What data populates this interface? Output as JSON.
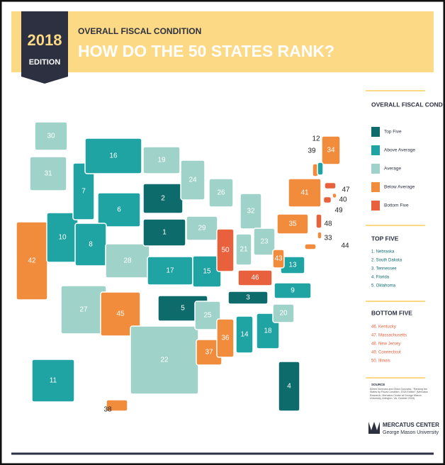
{
  "edition": {
    "year": "2018",
    "label": "EDITION"
  },
  "header": {
    "kicker": "OVERALL FISCAL CONDITION",
    "title": "HOW DO THE 50 STATES RANK?"
  },
  "legend": {
    "title": "OVERALL FISCAL CONDITION RANK",
    "items": [
      {
        "label": "Top Five",
        "color": "#0e6b6c"
      },
      {
        "label": "Above Average",
        "color": "#1fa4a3"
      },
      {
        "label": "Average",
        "color": "#9fd3c9"
      },
      {
        "label": "Below Average",
        "color": "#f08c3c"
      },
      {
        "label": "Bottom Five",
        "color": "#e8603c"
      }
    ]
  },
  "top_five": {
    "title": "TOP FIVE",
    "items": [
      "1. Nebraska",
      "2. South Dakota",
      "3. Tennessee",
      "4. Florida",
      "5. Oklahoma"
    ]
  },
  "bottom_five": {
    "title": "BOTTOM FIVE",
    "items": [
      "46. Kentucky",
      "47. Massachusetts",
      "48. New Jersey",
      "49. Connecticut",
      "50. Illinois"
    ]
  },
  "source": {
    "label": "SOURCE",
    "text": "Eileen Norcross and Olivia Gonzalez, \"Ranking the States by Fiscal Condition, 2018 Edition\" (Mercatus Research, Mercatus Center at George Mason University, Arlington, VA, October 2018)."
  },
  "logo": {
    "name": "MERCATUS CENTER",
    "org": "George Mason University"
  },
  "states": [
    {
      "rank": 30,
      "category": 2
    },
    {
      "rank": 31,
      "category": 2
    },
    {
      "rank": 42,
      "category": 3
    },
    {
      "rank": 10,
      "category": 1
    },
    {
      "rank": 7,
      "category": 1
    },
    {
      "rank": 16,
      "category": 1
    },
    {
      "rank": 6,
      "category": 1
    },
    {
      "rank": 8,
      "category": 1
    },
    {
      "rank": 27,
      "category": 2
    },
    {
      "rank": 28,
      "category": 2
    },
    {
      "rank": 45,
      "category": 3
    },
    {
      "rank": 19,
      "category": 2
    },
    {
      "rank": 2,
      "category": 0
    },
    {
      "rank": 1,
      "category": 0
    },
    {
      "rank": 17,
      "category": 1
    },
    {
      "rank": 5,
      "category": 0
    },
    {
      "rank": 22,
      "category": 2
    },
    {
      "rank": 24,
      "category": 2
    },
    {
      "rank": 29,
      "category": 2
    },
    {
      "rank": 15,
      "category": 1
    },
    {
      "rank": 25,
      "category": 2
    },
    {
      "rank": 37,
      "category": 3
    },
    {
      "rank": 26,
      "category": 2
    },
    {
      "rank": 50,
      "category": 4
    },
    {
      "rank": 36,
      "category": 3
    },
    {
      "rank": 32,
      "category": 2
    },
    {
      "rank": 21,
      "category": 2
    },
    {
      "rank": 46,
      "category": 4
    },
    {
      "rank": 3,
      "category": 0
    },
    {
      "rank": 14,
      "category": 1
    },
    {
      "rank": 23,
      "category": 2
    },
    {
      "rank": 18,
      "category": 1
    },
    {
      "rank": 4,
      "category": 0
    },
    {
      "rank": 20,
      "category": 2
    },
    {
      "rank": 9,
      "category": 1
    },
    {
      "rank": 13,
      "category": 1
    },
    {
      "rank": 43,
      "category": 3
    },
    {
      "rank": 35,
      "category": 3
    },
    {
      "rank": 41,
      "category": 3
    },
    {
      "rank": 34,
      "category": 3
    },
    {
      "rank": 39,
      "category": 3
    },
    {
      "rank": 12,
      "category": 1
    },
    {
      "rank": 47,
      "category": 4
    },
    {
      "rank": 40,
      "category": 3
    },
    {
      "rank": 49,
      "category": 4
    },
    {
      "rank": 48,
      "category": 4
    },
    {
      "rank": 33,
      "category": 3
    },
    {
      "rank": 44,
      "category": 3
    },
    {
      "rank": 11,
      "category": 1
    },
    {
      "rank": 38,
      "category": 3
    }
  ]
}
